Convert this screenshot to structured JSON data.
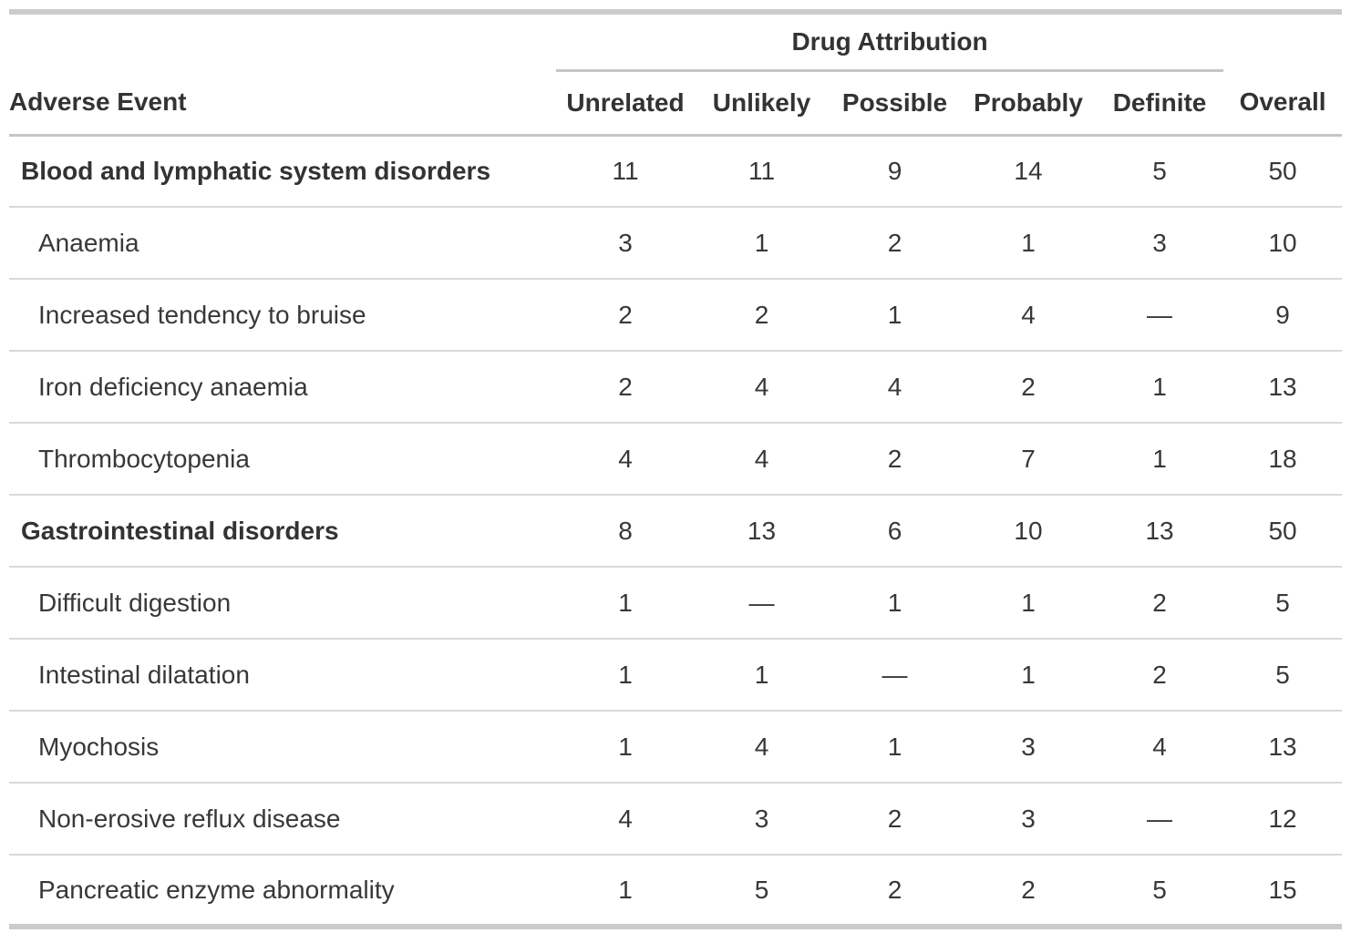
{
  "table": {
    "spanner_label": "Drug Attribution",
    "stub_header": "Adverse Event",
    "columns": [
      "Unrelated",
      "Unlikely",
      "Possible",
      "Probably",
      "Definite",
      "Overall"
    ],
    "rows": [
      {
        "label": "Blood and lymphatic system disorders",
        "group": true,
        "values": [
          "11",
          "11",
          "9",
          "14",
          "5",
          "50"
        ]
      },
      {
        "label": "Anaemia",
        "group": false,
        "values": [
          "3",
          "1",
          "2",
          "1",
          "3",
          "10"
        ]
      },
      {
        "label": "Increased tendency to bruise",
        "group": false,
        "values": [
          "2",
          "2",
          "1",
          "4",
          "—",
          "9"
        ]
      },
      {
        "label": "Iron deficiency anaemia",
        "group": false,
        "values": [
          "2",
          "4",
          "4",
          "2",
          "1",
          "13"
        ]
      },
      {
        "label": "Thrombocytopenia",
        "group": false,
        "values": [
          "4",
          "4",
          "2",
          "7",
          "1",
          "18"
        ]
      },
      {
        "label": "Gastrointestinal disorders",
        "group": true,
        "values": [
          "8",
          "13",
          "6",
          "10",
          "13",
          "50"
        ]
      },
      {
        "label": "Difficult digestion",
        "group": false,
        "values": [
          "1",
          "—",
          "1",
          "1",
          "2",
          "5"
        ]
      },
      {
        "label": "Intestinal dilatation",
        "group": false,
        "values": [
          "1",
          "1",
          "—",
          "1",
          "2",
          "5"
        ]
      },
      {
        "label": "Myochosis",
        "group": false,
        "values": [
          "1",
          "4",
          "1",
          "3",
          "4",
          "13"
        ]
      },
      {
        "label": "Non-erosive reflux disease",
        "group": false,
        "values": [
          "4",
          "3",
          "2",
          "3",
          "—",
          "12"
        ]
      },
      {
        "label": "Pancreatic enzyme abnormality",
        "group": false,
        "values": [
          "1",
          "5",
          "2",
          "2",
          "5",
          "15"
        ]
      }
    ],
    "colors": {
      "text": "#383838",
      "heading_text": "#333333",
      "border_heavy": "#cbcbcb",
      "border_medium": "#c6c6c6",
      "border_light": "#d9d9d9",
      "background": "#ffffff"
    }
  }
}
